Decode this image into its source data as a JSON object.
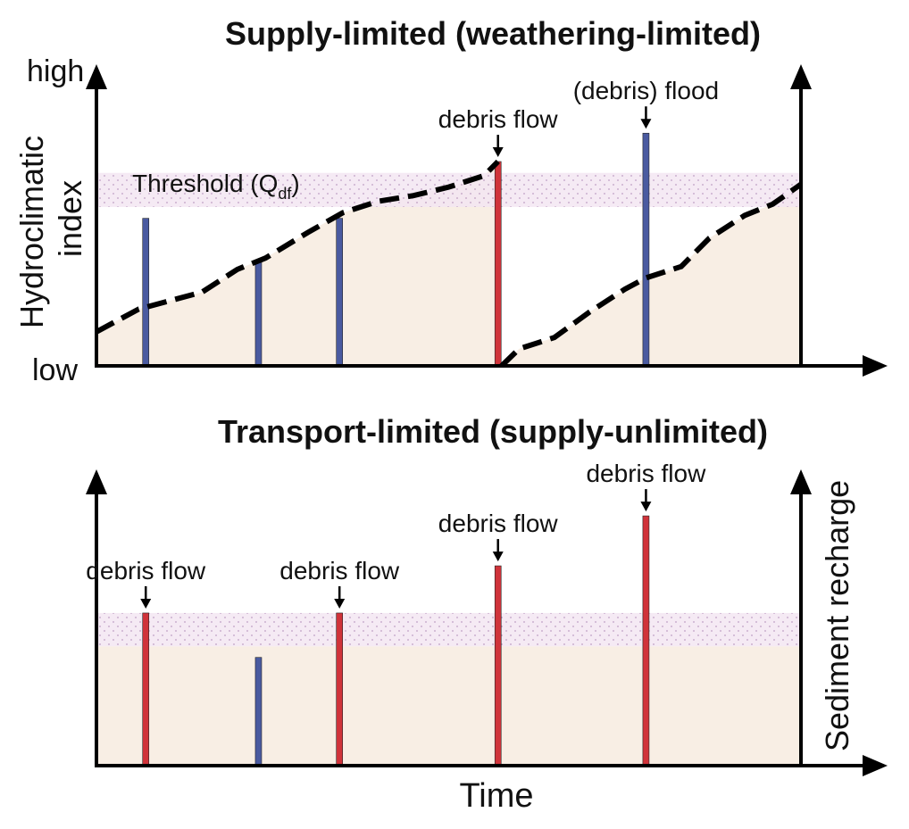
{
  "panels": {
    "top": {
      "title": "Supply-limited (weathering-limited)",
      "y_high": "high",
      "y_low": "low",
      "y_label_line1": "Hydroclimatic",
      "y_label_line2": "index",
      "threshold_label": "Threshold (Q",
      "threshold_sub": "df",
      "threshold_close": ")",
      "events": [
        {
          "t": 0.07,
          "level": 0.52,
          "type": "flood",
          "label": ""
        },
        {
          "t": 0.23,
          "level": 0.37,
          "type": "flood",
          "label": ""
        },
        {
          "t": 0.345,
          "level": 0.52,
          "type": "flood",
          "label": ""
        },
        {
          "t": 0.57,
          "level": 0.72,
          "type": "debris",
          "label": "debris flow"
        },
        {
          "t": 0.78,
          "level": 0.82,
          "type": "flood",
          "label": "(debris) flood"
        }
      ],
      "recharge_curve": [
        [
          0.0,
          0.12
        ],
        [
          0.06,
          0.2
        ],
        [
          0.15,
          0.26
        ],
        [
          0.2,
          0.34
        ],
        [
          0.24,
          0.38
        ],
        [
          0.3,
          0.47
        ],
        [
          0.35,
          0.54
        ],
        [
          0.4,
          0.58
        ],
        [
          0.45,
          0.6
        ],
        [
          0.5,
          0.63
        ],
        [
          0.55,
          0.67
        ],
        [
          0.57,
          0.72
        ],
        [
          0.575,
          0.0
        ],
        [
          0.6,
          0.06
        ],
        [
          0.65,
          0.1
        ],
        [
          0.7,
          0.19
        ],
        [
          0.75,
          0.27
        ],
        [
          0.78,
          0.31
        ],
        [
          0.83,
          0.35
        ],
        [
          0.87,
          0.45
        ],
        [
          0.92,
          0.53
        ],
        [
          0.96,
          0.57
        ],
        [
          1.0,
          0.64
        ]
      ],
      "threshold_band": [
        0.56,
        0.68
      ]
    },
    "bottom": {
      "title": "Transport-limited (supply-unlimited)",
      "y_label": "Sediment recharge",
      "x_label": "Time",
      "recharge_level": 0.43,
      "threshold_band": [
        0.43,
        0.55
      ],
      "events": [
        {
          "t": 0.07,
          "level": 0.55,
          "type": "debris",
          "label": "debris flow"
        },
        {
          "t": 0.23,
          "level": 0.39,
          "type": "flood",
          "label": ""
        },
        {
          "t": 0.345,
          "level": 0.55,
          "type": "debris",
          "label": "debris flow"
        },
        {
          "t": 0.57,
          "level": 0.72,
          "type": "debris",
          "label": "debris flow"
        },
        {
          "t": 0.78,
          "level": 0.9,
          "type": "debris",
          "label": "debris flow"
        }
      ]
    }
  },
  "colors": {
    "flood": "#4a5aa0",
    "debris": "#d0333a",
    "recharge_fill": "#f8eee4",
    "threshold_band": "#f1e3f0",
    "threshold_dots": "#b89abf",
    "axis": "#000000"
  }
}
